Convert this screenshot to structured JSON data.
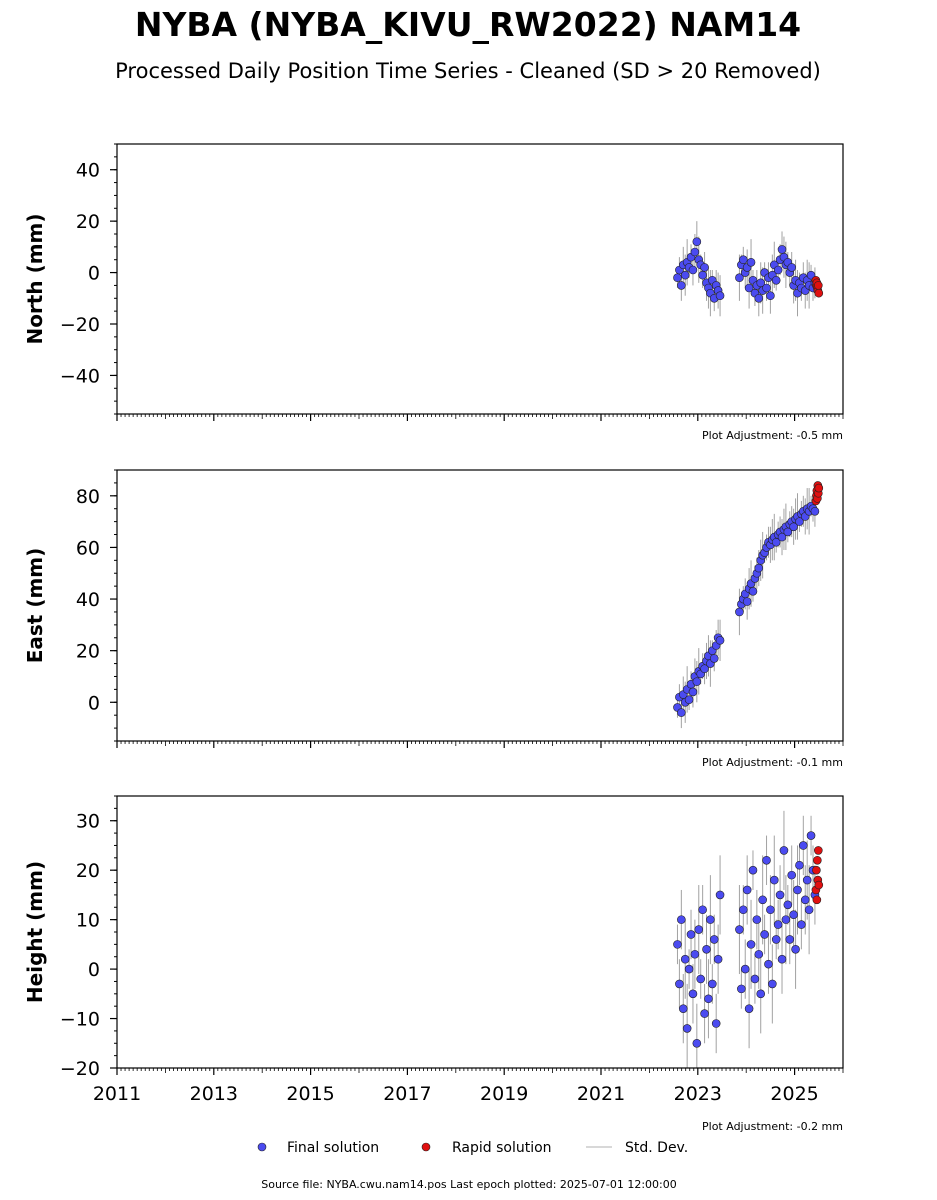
{
  "title": "NYBA (NYBA_KIVU_RW2022) NAM14",
  "subtitle": "Processed Daily Position Time Series - Cleaned (SD > 20 Removed)",
  "legend": [
    {
      "label": "Final solution",
      "color": "#4b4bf0",
      "marker": "dot"
    },
    {
      "label": "Rapid solution",
      "color": "#e01010",
      "marker": "dot"
    },
    {
      "label": "Std. Dev.",
      "color": "#cccccc",
      "marker": "line"
    }
  ],
  "footer": "Source file: NYBA.cwu.nam14.pos  Last epoch plotted: 2025-07-01 12:00:00",
  "colors": {
    "final": "#4b4bf0",
    "rapid": "#e01010",
    "stddev": "#555555"
  },
  "chart_data": [
    {
      "type": "scatter",
      "component": "north",
      "ylabel": "North (mm)",
      "ylim": [
        -55,
        50
      ],
      "yticks": [
        40,
        20,
        0,
        -20,
        -40
      ],
      "ytick_labels": [
        "40",
        "20",
        "0",
        "−20",
        "−40"
      ],
      "xlim": [
        2011.0,
        2026.0
      ],
      "adjustment": "Plot Adjustment: -0.5 mm",
      "series": [
        {
          "name": "Final solution",
          "x": [
            2022.58,
            2022.62,
            2022.66,
            2022.7,
            2022.74,
            2022.78,
            2022.82,
            2022.86,
            2022.9,
            2022.94,
            2022.98,
            2023.02,
            2023.06,
            2023.1,
            2023.14,
            2023.18,
            2023.22,
            2023.26,
            2023.3,
            2023.34,
            2023.38,
            2023.42,
            2023.46,
            2023.86,
            2023.9,
            2023.94,
            2023.98,
            2024.02,
            2024.06,
            2024.1,
            2024.14,
            2024.18,
            2024.22,
            2024.26,
            2024.3,
            2024.34,
            2024.38,
            2024.42,
            2024.46,
            2024.5,
            2024.54,
            2024.58,
            2024.62,
            2024.66,
            2024.7,
            2024.74,
            2024.78,
            2024.82,
            2024.86,
            2024.9,
            2024.94,
            2024.98,
            2025.02,
            2025.06,
            2025.1,
            2025.14,
            2025.18,
            2025.22,
            2025.26,
            2025.3,
            2025.34,
            2025.38,
            2025.42
          ],
          "y": [
            -2,
            1,
            -5,
            3,
            -1,
            4,
            2,
            6,
            1,
            8,
            12,
            5,
            3,
            -1,
            2,
            -4,
            -6,
            -8,
            -3,
            -10,
            -5,
            -7,
            -9,
            -2,
            3,
            5,
            0,
            2,
            -6,
            4,
            -3,
            -8,
            -5,
            -10,
            -4,
            -7,
            0,
            -6,
            -2,
            -9,
            -1,
            3,
            -3,
            1,
            5,
            9,
            6,
            3,
            4,
            0,
            2,
            -5,
            -3,
            -8,
            -4,
            -6,
            -2,
            -7,
            -3,
            -5,
            -1,
            -6,
            -4
          ]
        },
        {
          "name": "Rapid solution",
          "x": [
            2025.44,
            2025.45,
            2025.46,
            2025.47,
            2025.48,
            2025.49,
            2025.5
          ],
          "y": [
            -3,
            -5,
            -4,
            -6,
            -7,
            -5,
            -8
          ]
        }
      ]
    },
    {
      "type": "scatter",
      "component": "east",
      "ylabel": "East (mm)",
      "ylim": [
        -15,
        90
      ],
      "yticks": [
        80,
        60,
        40,
        20,
        0
      ],
      "ytick_labels": [
        "80",
        "60",
        "40",
        "20",
        "0"
      ],
      "xlim": [
        2011.0,
        2026.0
      ],
      "adjustment": "Plot Adjustment: -0.1 mm",
      "series": [
        {
          "name": "Final solution",
          "x": [
            2022.58,
            2022.62,
            2022.66,
            2022.7,
            2022.74,
            2022.78,
            2022.82,
            2022.86,
            2022.9,
            2022.94,
            2022.98,
            2023.02,
            2023.06,
            2023.1,
            2023.14,
            2023.18,
            2023.22,
            2023.26,
            2023.3,
            2023.34,
            2023.38,
            2023.42,
            2023.46,
            2023.86,
            2023.9,
            2023.94,
            2023.98,
            2024.02,
            2024.06,
            2024.1,
            2024.14,
            2024.18,
            2024.22,
            2024.26,
            2024.3,
            2024.34,
            2024.38,
            2024.42,
            2024.46,
            2024.5,
            2024.54,
            2024.58,
            2024.62,
            2024.66,
            2024.7,
            2024.74,
            2024.78,
            2024.82,
            2024.86,
            2024.9,
            2024.94,
            2024.98,
            2025.02,
            2025.06,
            2025.1,
            2025.14,
            2025.18,
            2025.22,
            2025.26,
            2025.3,
            2025.34,
            2025.38,
            2025.42
          ],
          "y": [
            -2,
            2,
            -4,
            3,
            0,
            5,
            1,
            7,
            4,
            10,
            8,
            12,
            11,
            14,
            13,
            16,
            18,
            15,
            20,
            17,
            22,
            25,
            24,
            35,
            38,
            40,
            42,
            39,
            44,
            46,
            43,
            48,
            50,
            52,
            55,
            57,
            58,
            60,
            62,
            61,
            63,
            64,
            62,
            65,
            66,
            64,
            67,
            68,
            66,
            69,
            70,
            68,
            71,
            72,
            70,
            73,
            74,
            72,
            75,
            74,
            76,
            75,
            74
          ]
        },
        {
          "name": "Rapid solution",
          "x": [
            2025.44,
            2025.45,
            2025.46,
            2025.47,
            2025.48,
            2025.49,
            2025.5
          ],
          "y": [
            78,
            80,
            82,
            79,
            84,
            81,
            83
          ]
        }
      ]
    },
    {
      "type": "scatter",
      "component": "height",
      "ylabel": "Height (mm)",
      "ylim": [
        -20,
        35
      ],
      "yticks": [
        30,
        20,
        10,
        0,
        -10,
        -20
      ],
      "ytick_labels": [
        "30",
        "20",
        "10",
        "0",
        "−10",
        "−20"
      ],
      "xlim": [
        2011.0,
        2026.0
      ],
      "xticks": [
        2011,
        2013,
        2015,
        2017,
        2019,
        2021,
        2023,
        2025
      ],
      "xtick_labels": [
        "2011",
        "2013",
        "2015",
        "2017",
        "2019",
        "2021",
        "2023",
        "2025"
      ],
      "adjustment": "Plot Adjustment: -0.2 mm",
      "series": [
        {
          "name": "Final solution",
          "x": [
            2022.58,
            2022.62,
            2022.66,
            2022.7,
            2022.74,
            2022.78,
            2022.82,
            2022.86,
            2022.9,
            2022.94,
            2022.98,
            2023.02,
            2023.06,
            2023.1,
            2023.14,
            2023.18,
            2023.22,
            2023.26,
            2023.3,
            2023.34,
            2023.38,
            2023.42,
            2023.46,
            2023.86,
            2023.9,
            2023.94,
            2023.98,
            2024.02,
            2024.06,
            2024.1,
            2024.14,
            2024.18,
            2024.22,
            2024.26,
            2024.3,
            2024.34,
            2024.38,
            2024.42,
            2024.46,
            2024.5,
            2024.54,
            2024.58,
            2024.62,
            2024.66,
            2024.7,
            2024.74,
            2024.78,
            2024.82,
            2024.86,
            2024.9,
            2024.94,
            2024.98,
            2025.02,
            2025.06,
            2025.1,
            2025.14,
            2025.18,
            2025.22,
            2025.26,
            2025.3,
            2025.34,
            2025.38,
            2025.42
          ],
          "y": [
            5,
            -3,
            10,
            -8,
            2,
            -12,
            0,
            7,
            -5,
            3,
            -15,
            8,
            -2,
            12,
            -9,
            4,
            -6,
            10,
            -3,
            6,
            -11,
            2,
            15,
            8,
            -4,
            12,
            0,
            16,
            -8,
            5,
            20,
            -2,
            10,
            3,
            -5,
            14,
            7,
            22,
            1,
            12,
            -3,
            18,
            6,
            9,
            15,
            2,
            24,
            10,
            13,
            6,
            19,
            11,
            4,
            16,
            21,
            9,
            25,
            14,
            18,
            12,
            27,
            20,
            15
          ]
        },
        {
          "name": "Rapid solution",
          "x": [
            2025.44,
            2025.45,
            2025.46,
            2025.47,
            2025.48,
            2025.49,
            2025.5
          ],
          "y": [
            16,
            20,
            14,
            22,
            18,
            24,
            17
          ]
        }
      ]
    }
  ]
}
